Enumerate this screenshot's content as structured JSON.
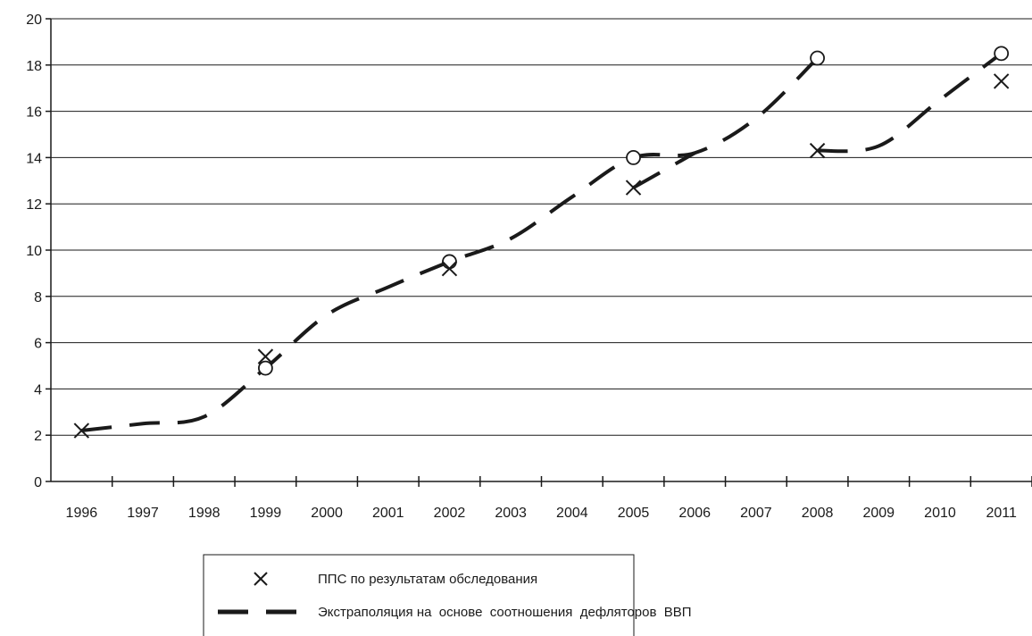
{
  "chart_data": {
    "type": "line",
    "categories": [
      "1996",
      "1997",
      "1998",
      "1999",
      "2000",
      "2001",
      "2002",
      "2003",
      "2004",
      "2005",
      "2006",
      "2007",
      "2008",
      "2009",
      "2010",
      "2011"
    ],
    "ylim": [
      0,
      20
    ],
    "yticks": [
      0,
      2,
      4,
      6,
      8,
      10,
      12,
      14,
      16,
      18,
      20
    ],
    "grid": true,
    "legend_position": "bottom-center",
    "series": [
      {
        "name": "ППС по результатам обследования",
        "style": "markers-x",
        "points": [
          {
            "x": "1996",
            "y": 2.2
          },
          {
            "x": "1999",
            "y": 5.4
          },
          {
            "x": "2002",
            "y": 9.2
          },
          {
            "x": "2005",
            "y": 12.7
          },
          {
            "x": "2008",
            "y": 14.3
          },
          {
            "x": "2011",
            "y": 17.3
          }
        ]
      },
      {
        "name": "Экстраполяция на  основе  соотношения  дефляторов  ВВП",
        "style": "dashed-line",
        "segments": [
          {
            "x": [
              "1996",
              "1997",
              "1998",
              "1999",
              "2000",
              "2001",
              "2002",
              "2003",
              "2004",
              "2005",
              "2006",
              "2007",
              "2008"
            ],
            "y": [
              2.2,
              2.5,
              2.8,
              4.9,
              7.2,
              8.4,
              9.5,
              10.5,
              12.3,
              14.0,
              14.2,
              15.7,
              18.3
            ]
          },
          {
            "x": [
              "2005",
              "2006"
            ],
            "y": [
              12.7,
              14.2
            ]
          },
          {
            "x": [
              "2008",
              "2009",
              "2010",
              "2011"
            ],
            "y": [
              14.3,
              14.5,
              16.5,
              18.5
            ]
          }
        ],
        "circle_markers": [
          {
            "x": "1999",
            "y": 4.9
          },
          {
            "x": "2002",
            "y": 9.5
          },
          {
            "x": "2005",
            "y": 14.0
          },
          {
            "x": "2008",
            "y": 18.3
          },
          {
            "x": "2011",
            "y": 18.5
          }
        ]
      }
    ]
  },
  "legend": {
    "items": [
      {
        "label": "ППС по результатам обследования",
        "symbol": "x-marker-icon"
      },
      {
        "label": "Экстраполяция на  основе  соотношения  дефляторов  ВВП",
        "symbol": "dashed-line-icon"
      }
    ]
  },
  "colors": {
    "line": "#1a1a1a",
    "grid": "#1a1a1a",
    "background": "#ffffff"
  }
}
